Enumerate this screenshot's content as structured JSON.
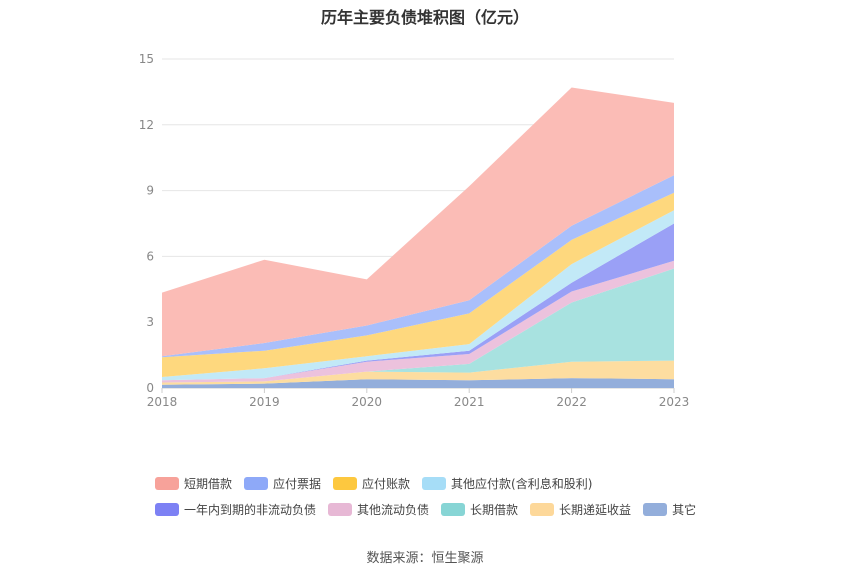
{
  "chart_data": {
    "type": "area",
    "stacked": true,
    "title": "历年主要负债堆积图（亿元）",
    "x": [
      "2018",
      "2019",
      "2020",
      "2021",
      "2022",
      "2023"
    ],
    "ylim": [
      0,
      15
    ],
    "yticks": [
      "0",
      "3",
      "6",
      "9",
      "12",
      "15"
    ],
    "grid": true,
    "legend_position": "bottom",
    "series": [
      {
        "name": "其它",
        "color": "#93aedb",
        "values": [
          0.15,
          0.2,
          0.4,
          0.35,
          0.45,
          0.4
        ]
      },
      {
        "name": "长期递延收益",
        "color": "#fddda0",
        "values": [
          0.1,
          0.1,
          0.35,
          0.35,
          0.75,
          0.85
        ]
      },
      {
        "name": "长期借款",
        "color": "#a8e2e0",
        "values": [
          0.0,
          0.0,
          0.0,
          0.4,
          2.7,
          4.2
        ]
      },
      {
        "name": "其他流动负债",
        "color": "#ecc2dd",
        "values": [
          0.1,
          0.15,
          0.45,
          0.45,
          0.5,
          0.35
        ]
      },
      {
        "name": "一年内到期的非流动负债",
        "color": "#9aa0f6",
        "values": [
          0.0,
          0.0,
          0.05,
          0.15,
          0.4,
          1.7
        ]
      },
      {
        "name": "其他应付款(含利息和股利)",
        "color": "#c2e9f7",
        "values": [
          0.15,
          0.45,
          0.2,
          0.3,
          0.85,
          0.6
        ]
      },
      {
        "name": "应付账款",
        "color": "#fed87e",
        "values": [
          0.9,
          0.8,
          0.95,
          1.4,
          1.1,
          0.8
        ]
      },
      {
        "name": "应付票据",
        "color": "#a9bffb",
        "values": [
          0.05,
          0.35,
          0.45,
          0.6,
          0.65,
          0.8
        ]
      },
      {
        "name": "短期借款",
        "color": "#fbbcb6",
        "values": [
          2.9,
          3.8,
          2.1,
          5.2,
          6.3,
          3.3
        ]
      }
    ],
    "legend_rows": [
      [
        {
          "name": "短期借款",
          "color": "#f7a29a"
        },
        {
          "name": "应付票据",
          "color": "#8ea9f8"
        },
        {
          "name": "应付账款",
          "color": "#fdc83f"
        },
        {
          "name": "其他应付款(含利息和股利)",
          "color": "#a6ddf7"
        }
      ],
      [
        {
          "name": "一年内到期的非流动负债",
          "color": "#7d81f4"
        },
        {
          "name": "其他流动负债",
          "color": "#e7b8d5"
        },
        {
          "name": "长期借款",
          "color": "#87d5d5"
        },
        {
          "name": "长期递延收益",
          "color": "#fdd89a"
        },
        {
          "name": "其它",
          "color": "#93aedb"
        }
      ]
    ]
  },
  "footer": {
    "source": "数据来源：恒生聚源"
  }
}
